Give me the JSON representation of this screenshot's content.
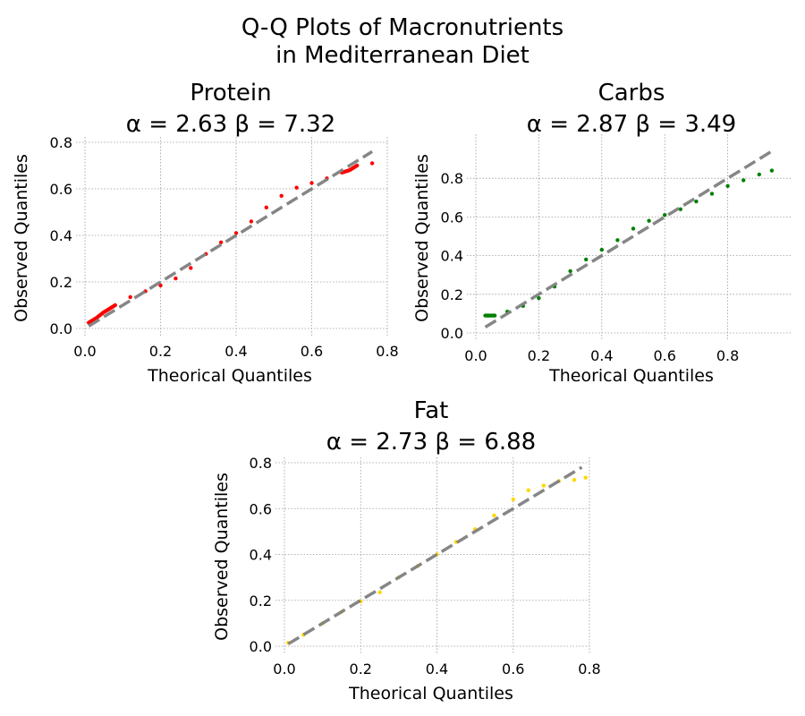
{
  "figure": {
    "title_line1": "Q-Q Plots of Macronutrients",
    "title_line2": "in Mediterranean Diet"
  },
  "chart_data": [
    {
      "type": "scatter",
      "panel": "protein",
      "title_name": "Protein",
      "title_params": "α =  2.63 β = 7.32",
      "xlabel": "Theorical Quantiles",
      "ylabel": "Observed Quantiles",
      "xlim": [
        0,
        0.8
      ],
      "ylim": [
        0,
        0.8
      ],
      "xticks": [
        "0.0",
        "0.2",
        "0.4",
        "0.6",
        "0.8"
      ],
      "yticks": [
        "0.0",
        "0.2",
        "0.4",
        "0.6",
        "0.8"
      ],
      "grid": true,
      "point_color": "#ff0000",
      "reference_line": {
        "from": [
          0.01,
          0.01
        ],
        "to": [
          0.76,
          0.76
        ],
        "color": "#808080",
        "style": "dashed"
      },
      "points": [
        [
          0.01,
          0.025
        ],
        [
          0.03,
          0.045
        ],
        [
          0.05,
          0.07
        ],
        [
          0.08,
          0.1
        ],
        [
          0.12,
          0.135
        ],
        [
          0.16,
          0.16
        ],
        [
          0.2,
          0.185
        ],
        [
          0.24,
          0.215
        ],
        [
          0.28,
          0.26
        ],
        [
          0.32,
          0.32
        ],
        [
          0.36,
          0.37
        ],
        [
          0.4,
          0.41
        ],
        [
          0.44,
          0.46
        ],
        [
          0.48,
          0.52
        ],
        [
          0.52,
          0.57
        ],
        [
          0.56,
          0.605
        ],
        [
          0.6,
          0.625
        ],
        [
          0.64,
          0.645
        ],
        [
          0.68,
          0.67
        ],
        [
          0.7,
          0.68
        ],
        [
          0.72,
          0.7
        ],
        [
          0.76,
          0.71
        ]
      ]
    },
    {
      "type": "scatter",
      "panel": "carbs",
      "title_name": "Carbs",
      "title_params": "α =  2.87 β = 3.49",
      "xlabel": "Theorical Quantiles",
      "ylabel": "Observed Quantiles",
      "xlim": [
        0,
        1
      ],
      "ylim": [
        0,
        1
      ],
      "xticks": [
        "0.0",
        "0.2",
        "0.4",
        "0.6",
        "0.8"
      ],
      "yticks": [
        "0.0",
        "0.2",
        "0.4",
        "0.6",
        "0.8"
      ],
      "grid": true,
      "point_color": "#008000",
      "reference_line": {
        "from": [
          0.03,
          0.03
        ],
        "to": [
          0.94,
          0.94
        ],
        "color": "#808080",
        "style": "dashed"
      },
      "points": [
        [
          0.03,
          0.09
        ],
        [
          0.06,
          0.09
        ],
        [
          0.1,
          0.11
        ],
        [
          0.15,
          0.14
        ],
        [
          0.2,
          0.18
        ],
        [
          0.25,
          0.24
        ],
        [
          0.3,
          0.32
        ],
        [
          0.35,
          0.38
        ],
        [
          0.4,
          0.43
        ],
        [
          0.45,
          0.48
        ],
        [
          0.5,
          0.54
        ],
        [
          0.55,
          0.58
        ],
        [
          0.6,
          0.61
        ],
        [
          0.65,
          0.64
        ],
        [
          0.7,
          0.68
        ],
        [
          0.75,
          0.72
        ],
        [
          0.8,
          0.76
        ],
        [
          0.85,
          0.79
        ],
        [
          0.9,
          0.82
        ],
        [
          0.94,
          0.84
        ]
      ]
    },
    {
      "type": "scatter",
      "panel": "fat",
      "title_name": "Fat",
      "title_params": "α =  2.73 β = 6.88",
      "xlabel": "Theorical Quantiles",
      "ylabel": "Observed Quantiles",
      "xlim": [
        0,
        0.8
      ],
      "ylim": [
        0,
        0.8
      ],
      "xticks": [
        "0.0",
        "0.2",
        "0.4",
        "0.6",
        "0.8"
      ],
      "yticks": [
        "0.0",
        "0.2",
        "0.4",
        "0.6",
        "0.8"
      ],
      "grid": true,
      "point_color": "#ffd700",
      "reference_line": {
        "from": [
          0.01,
          0.01
        ],
        "to": [
          0.78,
          0.78
        ],
        "color": "#808080",
        "style": "dashed"
      },
      "points": [
        [
          0.01,
          0.015
        ],
        [
          0.05,
          0.05
        ],
        [
          0.1,
          0.1
        ],
        [
          0.15,
          0.15
        ],
        [
          0.2,
          0.195
        ],
        [
          0.25,
          0.235
        ],
        [
          0.3,
          0.3
        ],
        [
          0.35,
          0.35
        ],
        [
          0.4,
          0.4
        ],
        [
          0.45,
          0.455
        ],
        [
          0.5,
          0.51
        ],
        [
          0.55,
          0.57
        ],
        [
          0.6,
          0.64
        ],
        [
          0.64,
          0.68
        ],
        [
          0.68,
          0.7
        ],
        [
          0.72,
          0.72
        ],
        [
          0.76,
          0.725
        ],
        [
          0.79,
          0.735
        ]
      ]
    }
  ]
}
